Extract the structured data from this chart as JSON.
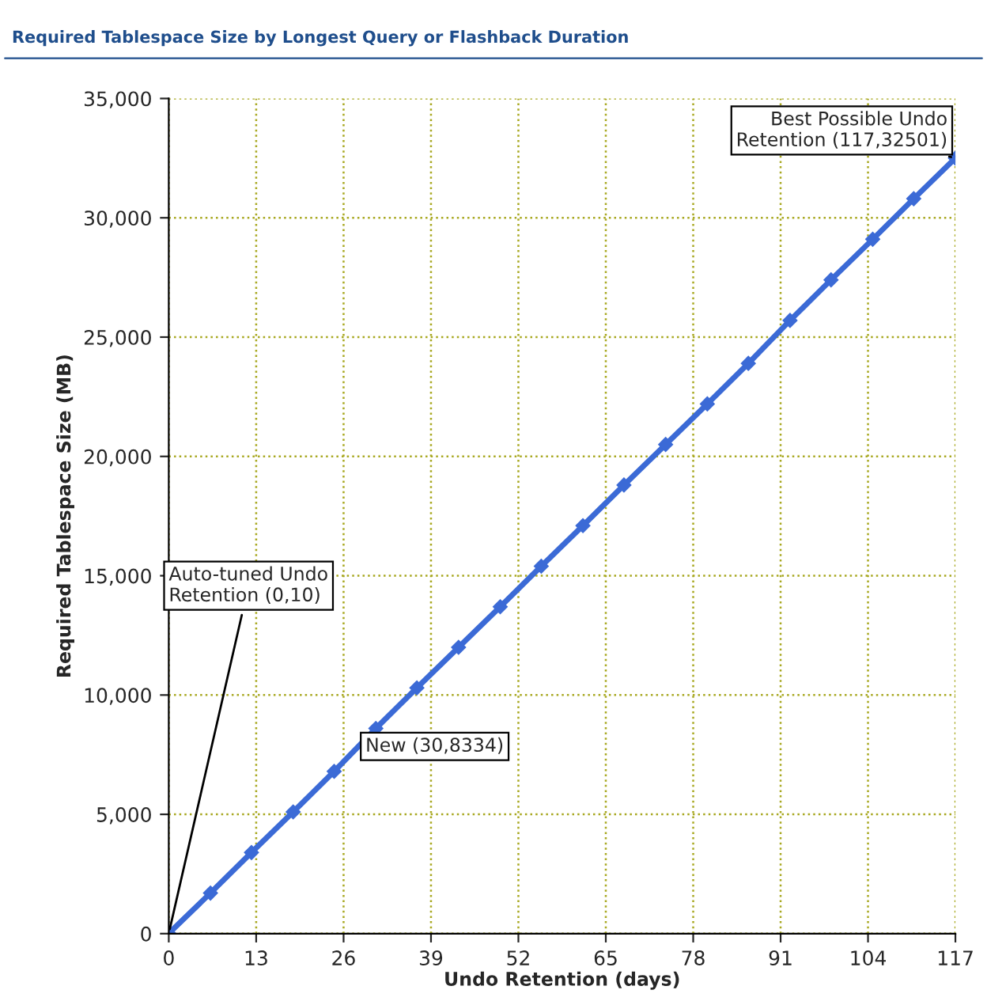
{
  "chart_data": {
    "type": "line",
    "title": "Required Tablespace Size by Longest Query or Flashback Duration",
    "xlabel": "Undo Retention (days)",
    "ylabel": "Required Tablespace Size (MB)",
    "x": [
      0,
      6.2,
      12.3,
      18.5,
      24.6,
      30.8,
      36.9,
      43.1,
      49.3,
      55.4,
      61.6,
      67.7,
      73.9,
      80.1,
      86.2,
      92.4,
      98.5,
      104.7,
      110.8,
      117
    ],
    "series": [
      {
        "color": "#3b6ad6",
        "values": [
          10,
          1700,
          3400,
          5100,
          6800,
          8600,
          10300,
          12000,
          13700,
          15400,
          17100,
          18800,
          20500,
          22200,
          23900,
          25700,
          27400,
          29100,
          30800,
          32500
        ]
      }
    ],
    "xlim": [
      0,
      117
    ],
    "xticks": [
      0,
      13,
      26,
      39,
      52,
      65,
      78,
      91,
      104,
      117
    ],
    "ylim": [
      0,
      35000
    ],
    "yticks": [
      {
        "value": 0,
        "label": "0"
      },
      {
        "value": 5000,
        "label": "5,000"
      },
      {
        "value": 10000,
        "label": "10,000"
      },
      {
        "value": 15000,
        "label": "15,000"
      },
      {
        "value": 20000,
        "label": "20,000"
      },
      {
        "value": 25000,
        "label": "25,000"
      },
      {
        "value": 30000,
        "label": "30,000"
      },
      {
        "value": 35000,
        "label": "35,000"
      }
    ],
    "grid": true,
    "marker": "diamond",
    "line_style": "solid",
    "annotations": [
      {
        "text": "Best Possible Undo\nRetention (117,32501)",
        "x": 117,
        "y": 32501
      },
      {
        "text": "Auto-tuned Undo\nRetention (0,10)",
        "x": 0,
        "y": 10
      },
      {
        "text": "New (30,8334)",
        "x": 30,
        "y": 8334
      }
    ]
  }
}
